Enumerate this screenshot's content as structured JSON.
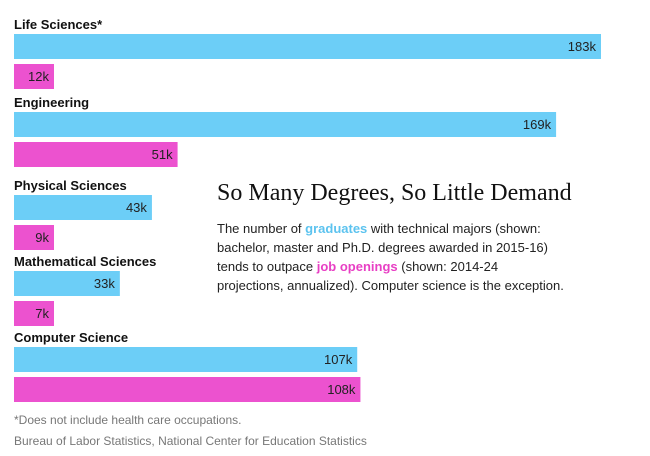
{
  "chart_data": {
    "type": "bar",
    "orientation": "horizontal",
    "categories": [
      "Life Sciences*",
      "Engineering",
      "Physical Sciences",
      "Mathematical Sciences",
      "Computer Science"
    ],
    "series": [
      {
        "name": "graduates",
        "color": "#6ccef7",
        "values": [
          183,
          169,
          43,
          33,
          107
        ],
        "labels": [
          "183k",
          "169k",
          "43k",
          "33k",
          "107k"
        ]
      },
      {
        "name": "job openings",
        "color": "#ec52cf",
        "values": [
          12,
          51,
          9,
          7,
          108
        ],
        "labels": [
          "12k",
          "51k",
          "9k",
          "7k",
          "108k"
        ]
      }
    ],
    "unit": "k",
    "xlim": [
      0,
      183
    ],
    "grid": false,
    "legend": "inline in description text",
    "title": "So Many Degrees, So Little Demand"
  },
  "description": {
    "part1": "The number of ",
    "graduates": "graduates",
    "part2": " with technical majors (shown: bachelor, master and Ph.D. degrees awarded in 2015-16) tends to outpace ",
    "job_openings": "job openings",
    "part3": " (shown: 2014-24 projections, annualized). Computer science is the exception."
  },
  "footnote": "*Does not include health care occupations.",
  "source": "Bureau of Labor Statistics, National Center for Education Statistics"
}
